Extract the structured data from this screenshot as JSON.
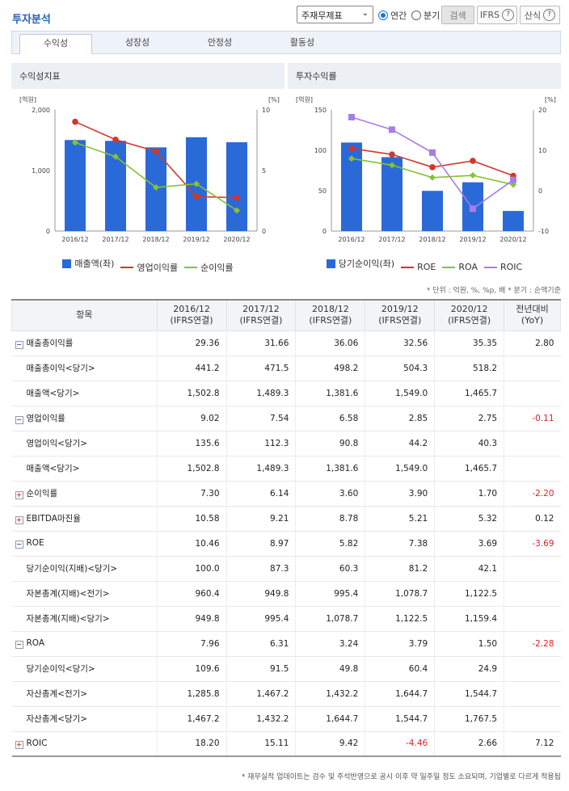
{
  "header": {
    "title": "투자분석",
    "select_value": "주재무제표",
    "radio_annual": "연간",
    "radio_quarter": "분기",
    "search_label": "검색",
    "ifrs_label": "IFRS",
    "formula_label": "산식"
  },
  "tabs": [
    "수익성",
    "성장성",
    "안정성",
    "활동성"
  ],
  "left_panel": {
    "title": "수익성지표",
    "y_left_unit": "[억원]",
    "y_right_unit": "[%]"
  },
  "right_panel": {
    "title": "투자수익률",
    "y_left_unit": "[억원]",
    "y_right_unit": "[%]"
  },
  "colors": {
    "bar": "#2a6ad8",
    "line1": "#d0382b",
    "line2": "#86c232",
    "line3": "#a77de6"
  },
  "chart_data": [
    {
      "type": "bar",
      "categories": [
        "2016/12",
        "2017/12",
        "2018/12",
        "2019/12",
        "2020/12"
      ],
      "title": "수익성지표",
      "yticks_left": [
        "2,000",
        "1,000",
        "0"
      ],
      "yticks_right": [
        "10",
        "5",
        "0"
      ],
      "ylim": [
        0,
        2000
      ],
      "y2lim": [
        0,
        10
      ],
      "series": [
        {
          "name": "매출액(좌)",
          "type": "bar",
          "values": [
            1502.8,
            1489.3,
            1381.6,
            1549.0,
            1465.7
          ]
        },
        {
          "name": "영업이익률",
          "type": "line",
          "values": [
            9.02,
            7.54,
            6.58,
            2.85,
            2.75
          ]
        },
        {
          "name": "순이익률",
          "type": "line",
          "values": [
            7.3,
            6.14,
            3.6,
            3.9,
            1.7
          ]
        }
      ]
    },
    {
      "type": "bar",
      "categories": [
        "2016/12",
        "2017/12",
        "2018/12",
        "2019/12",
        "2020/12"
      ],
      "title": "투자수익률",
      "yticks_left": [
        "150",
        "100",
        "50",
        "0"
      ],
      "yticks_right": [
        "20",
        "10",
        "0",
        "-10"
      ],
      "ylim": [
        0,
        150
      ],
      "y2lim": [
        -10,
        20
      ],
      "series": [
        {
          "name": "당기순이익(좌)",
          "type": "bar",
          "values": [
            109.6,
            91.5,
            49.8,
            60.4,
            24.9
          ]
        },
        {
          "name": "ROE",
          "type": "line",
          "values": [
            10.46,
            8.97,
            5.82,
            7.38,
            3.69
          ]
        },
        {
          "name": "ROA",
          "type": "line",
          "values": [
            7.96,
            6.31,
            3.24,
            3.79,
            1.5
          ]
        },
        {
          "name": "ROIC",
          "type": "line",
          "values": [
            18.2,
            15.11,
            9.42,
            -4.46,
            2.66
          ]
        }
      ]
    }
  ],
  "note": "* 단위 : 억원, %, %p, 배 * 분기 : 순액기준",
  "table": {
    "headers": [
      "항목",
      "2016/12\n(IFRS연결)",
      "2017/12\n(IFRS연결)",
      "2018/12\n(IFRS연결)",
      "2019/12\n(IFRS연결)",
      "2020/12\n(IFRS연결)",
      "전년대비\n(YoY)"
    ],
    "rows": [
      {
        "label": "매출총이익률",
        "tog": "minus",
        "v": [
          "29.36",
          "31.66",
          "36.06",
          "32.56",
          "35.35",
          "2.80"
        ]
      },
      {
        "label": "매출총이익<당기>",
        "sub": true,
        "v": [
          "441.2",
          "471.5",
          "498.2",
          "504.3",
          "518.2",
          ""
        ]
      },
      {
        "label": "매출액<당기>",
        "sub": true,
        "v": [
          "1,502.8",
          "1,489.3",
          "1,381.6",
          "1,549.0",
          "1,465.7",
          ""
        ]
      },
      {
        "label": "영업이익률",
        "tog": "minus",
        "v": [
          "9.02",
          "7.54",
          "6.58",
          "2.85",
          "2.75",
          "-0.11"
        ]
      },
      {
        "label": "영업이익<당기>",
        "sub": true,
        "v": [
          "135.6",
          "112.3",
          "90.8",
          "44.2",
          "40.3",
          ""
        ]
      },
      {
        "label": "매출액<당기>",
        "sub": true,
        "v": [
          "1,502.8",
          "1,489.3",
          "1,381.6",
          "1,549.0",
          "1,465.7",
          ""
        ]
      },
      {
        "label": "순이익률",
        "tog": "plus",
        "v": [
          "7.30",
          "6.14",
          "3.60",
          "3.90",
          "1.70",
          "-2.20"
        ]
      },
      {
        "label": "EBITDA마진율",
        "tog": "plus",
        "v": [
          "10.58",
          "9.21",
          "8.78",
          "5.21",
          "5.32",
          "0.12"
        ]
      },
      {
        "label": "ROE",
        "tog": "minus",
        "v": [
          "10.46",
          "8.97",
          "5.82",
          "7.38",
          "3.69",
          "-3.69"
        ]
      },
      {
        "label": "당기순이익(지배)<당기>",
        "sub": true,
        "v": [
          "100.0",
          "87.3",
          "60.3",
          "81.2",
          "42.1",
          ""
        ]
      },
      {
        "label": "자본총계(지배)<전기>",
        "sub": true,
        "v": [
          "960.4",
          "949.8",
          "995.4",
          "1,078.7",
          "1,122.5",
          ""
        ]
      },
      {
        "label": "자본총계(지배)<당기>",
        "sub": true,
        "v": [
          "949.8",
          "995.4",
          "1,078.7",
          "1,122.5",
          "1,159.4",
          ""
        ]
      },
      {
        "label": "ROA",
        "tog": "minus",
        "v": [
          "7.96",
          "6.31",
          "3.24",
          "3.79",
          "1.50",
          "-2.28"
        ]
      },
      {
        "label": "당기순이익<당기>",
        "sub": true,
        "v": [
          "109.6",
          "91.5",
          "49.8",
          "60.4",
          "24.9",
          ""
        ]
      },
      {
        "label": "자산총계<전기>",
        "sub": true,
        "v": [
          "1,285.8",
          "1,467.2",
          "1,432.2",
          "1,644.7",
          "1,544.7",
          ""
        ]
      },
      {
        "label": "자산총계<당기>",
        "sub": true,
        "v": [
          "1,467.2",
          "1,432.2",
          "1,644.7",
          "1,544.7",
          "1,767.5",
          ""
        ]
      },
      {
        "label": "ROIC",
        "tog": "plus",
        "v": [
          "18.20",
          "15.11",
          "9.42",
          "-4.46",
          "2.66",
          "7.12"
        ]
      }
    ]
  },
  "footer": "* 재무실적 업데이트는 검수 및 주석반영으로 공시 이후 약 일주일 정도 소요되며, 기업별로 다르게 적용됩"
}
